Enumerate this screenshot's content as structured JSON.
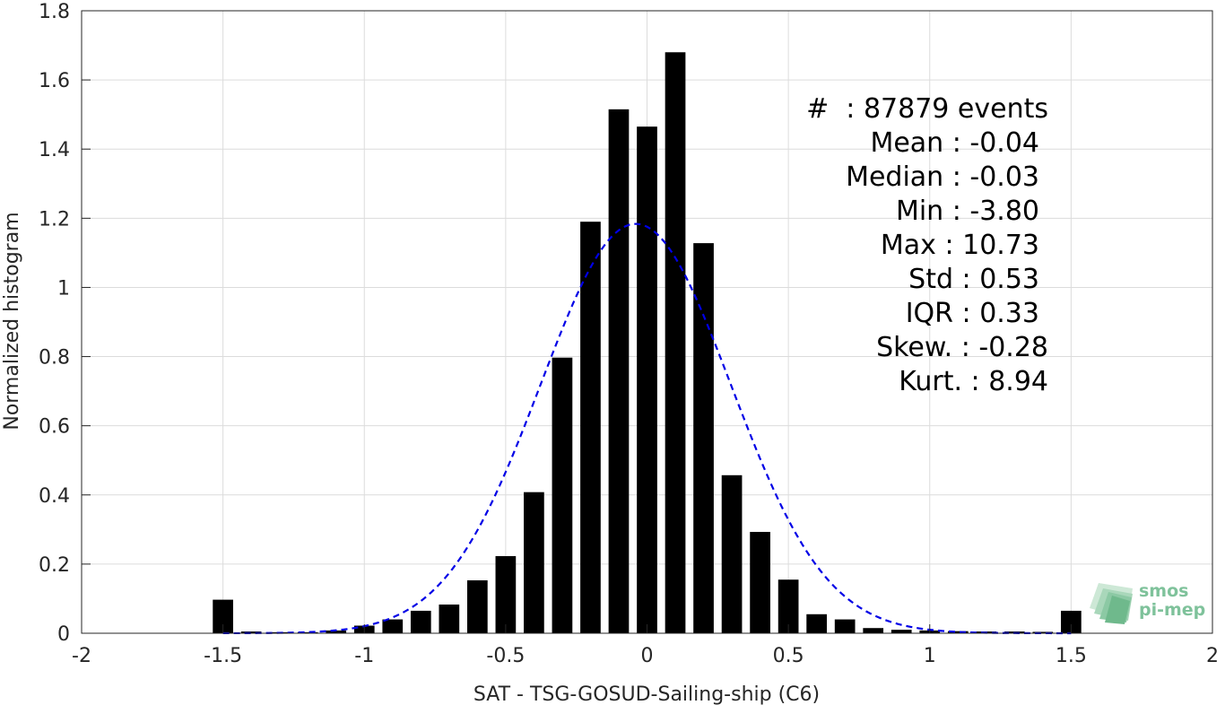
{
  "chart_data": {
    "type": "bar",
    "xlabel": "SAT - TSG-GOSUD-Sailing-ship (C6)",
    "ylabel": "Normalized histogram",
    "xlim": [
      -2,
      2
    ],
    "ylim": [
      0,
      1.8
    ],
    "xticks": [
      -2,
      -1.5,
      -1,
      -0.5,
      0,
      0.5,
      1,
      1.5,
      2
    ],
    "xtick_labels": [
      "-2",
      "-1.5",
      "-1",
      "-0.5",
      "0",
      "0.5",
      "1",
      "1.5",
      "2"
    ],
    "yticks": [
      0,
      0.2,
      0.4,
      0.6,
      0.8,
      1,
      1.2,
      1.4,
      1.6,
      1.8
    ],
    "ytick_labels": [
      "0",
      "0.2",
      "0.4",
      "0.6",
      "0.8",
      "1",
      "1.2",
      "1.4",
      "1.6",
      "1.8"
    ],
    "grid": true,
    "bar_color": "#000000",
    "bin_width": 0.1,
    "bins": [
      -1.5,
      -1.4,
      -1.3,
      -1.2,
      -1.1,
      -1.0,
      -0.9,
      -0.8,
      -0.7,
      -0.6,
      -0.5,
      -0.4,
      -0.3,
      -0.2,
      -0.1,
      0.0,
      0.1,
      0.2,
      0.3,
      0.4,
      0.5,
      0.6,
      0.7,
      0.8,
      0.9,
      1.0,
      1.1,
      1.2,
      1.3,
      1.4,
      1.5
    ],
    "values": [
      0.097,
      0.005,
      0.003,
      0.003,
      0.008,
      0.022,
      0.04,
      0.065,
      0.083,
      0.153,
      0.223,
      0.408,
      0.797,
      1.19,
      1.515,
      1.465,
      1.68,
      1.128,
      0.457,
      0.293,
      0.155,
      0.055,
      0.04,
      0.015,
      0.01,
      0.008,
      0.006,
      0.005,
      0.005,
      0.004,
      0.065
    ],
    "fit": {
      "type": "gaussian",
      "mean": -0.04,
      "std": 0.337,
      "style": "dashed",
      "color": "#0000e6"
    }
  },
  "stats": {
    "lines": [
      "#  : 87879 events",
      "Mean : -0.04",
      "Median : -0.03",
      "Min : -3.80",
      "Max : 10.73",
      "Std : 0.53",
      "IQR : 0.33",
      "Skew. : -0.28",
      "Kurt. : 8.94"
    ]
  },
  "logo": {
    "line1": "smos",
    "line2": "pi-mep",
    "color": "#7fc29b"
  }
}
